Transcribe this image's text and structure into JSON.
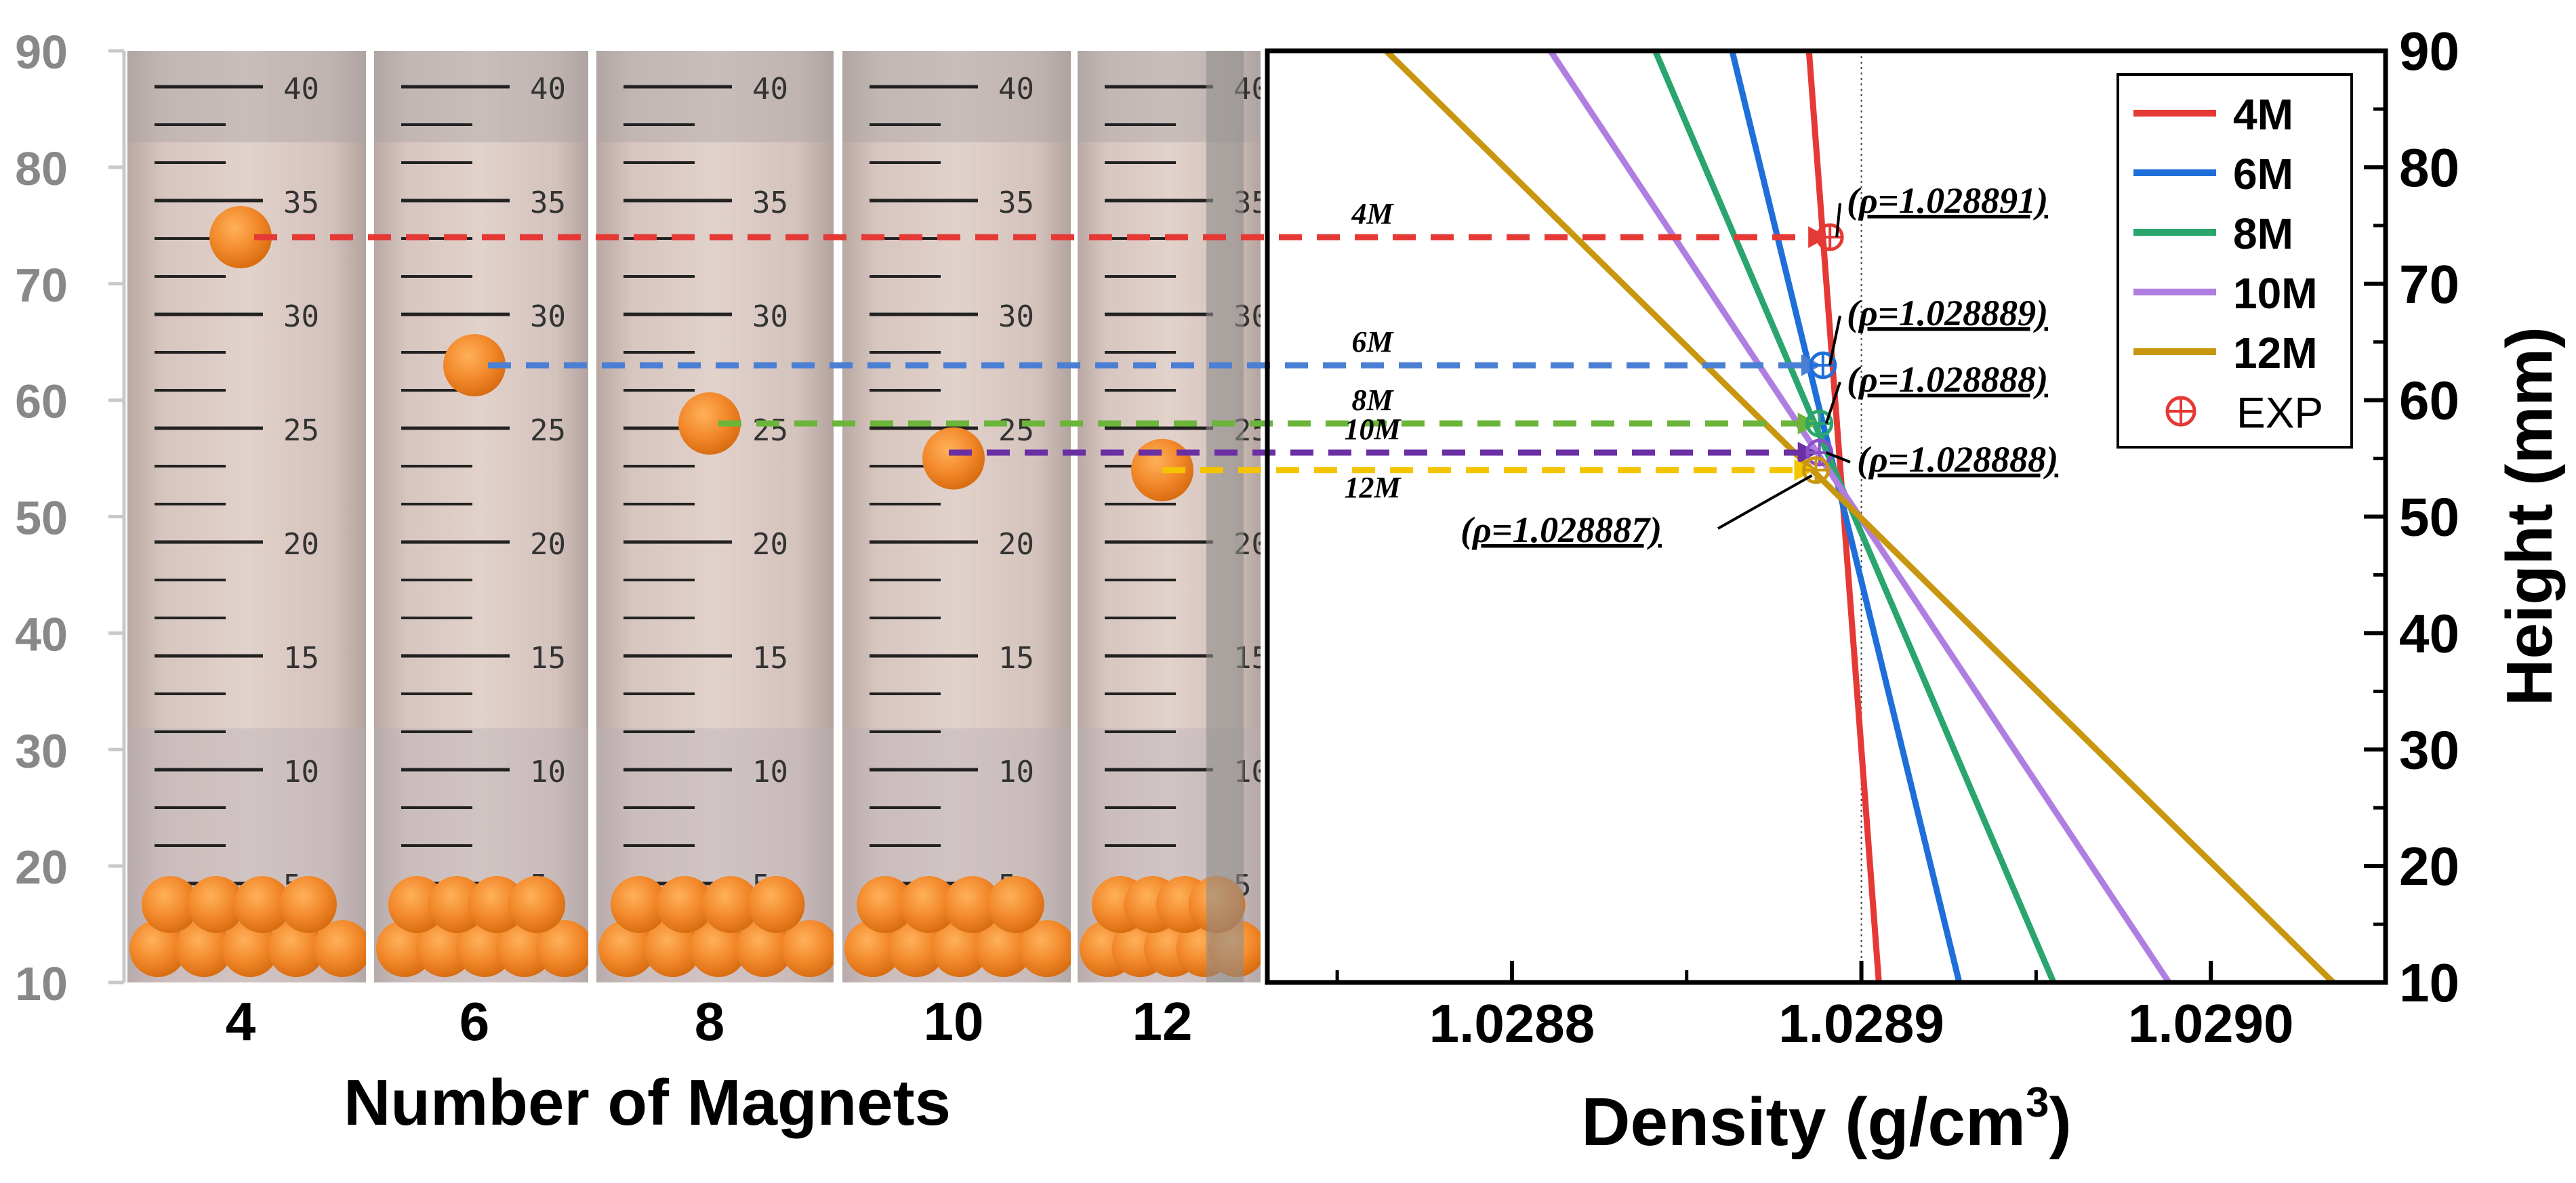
{
  "chart_data": [
    {
      "type": "photo-axis",
      "description_labels": {
        "xlabel": "Number of Magnets",
        "ylabel": ""
      },
      "yticks": [
        90,
        80,
        70,
        60,
        50,
        40,
        30,
        20,
        10
      ],
      "ylim": [
        10,
        90
      ],
      "tubes": [
        {
          "magnets": "4",
          "bead_height": 74
        },
        {
          "magnets": "6",
          "bead_height": 63
        },
        {
          "magnets": "8",
          "bead_height": 58
        },
        {
          "magnets": "10",
          "bead_height": 55
        },
        {
          "magnets": "12",
          "bead_height": 54
        }
      ],
      "tube_scale": [
        "40",
        "35",
        "30",
        "25",
        "20",
        "15",
        "10",
        "5"
      ]
    },
    {
      "type": "line",
      "xlabel": "Density (g/cm",
      "xlabel_sup": "3",
      "xlabel_close": ")",
      "ylabel": "Height (mm)",
      "xlim": [
        1.02873,
        1.02905
      ],
      "ylim": [
        10,
        90
      ],
      "xticks": [
        "1.0288",
        "1.0289",
        "1.0290"
      ],
      "xtick_values": [
        1.0288,
        1.0289,
        1.029
      ],
      "yticks": [
        90,
        80,
        70,
        60,
        50,
        40,
        30,
        20,
        10
      ],
      "reference_line_x": 1.0289,
      "series": [
        {
          "name": "4M",
          "color": "#e53935",
          "x0": 1.028885,
          "y0": 90,
          "x1": 1.028905,
          "y1": 10
        },
        {
          "name": "6M",
          "color": "#1e6fd9",
          "x0": 1.028863,
          "y0": 90,
          "x1": 1.028928,
          "y1": 10
        },
        {
          "name": "8M",
          "color": "#2aa56e",
          "x0": 1.028841,
          "y0": 90,
          "x1": 1.028955,
          "y1": 10
        },
        {
          "name": "10M",
          "color": "#b07ee0",
          "x0": 1.028811,
          "y0": 90,
          "x1": 1.028988,
          "y1": 10
        },
        {
          "name": "12M",
          "color": "#c9970f",
          "x0": 1.028764,
          "y0": 90,
          "x1": 1.029035,
          "y1": 10
        }
      ],
      "exp_points": [
        {
          "label": "4M",
          "y": 74,
          "x": 1.028891,
          "rho": "(ρ=1.028891)",
          "color": "#e53935",
          "arrow_color": "#e53935"
        },
        {
          "label": "6M",
          "y": 63,
          "x": 1.028889,
          "rho": "(ρ=1.028889)",
          "color": "#1e6fd9",
          "arrow_color": "#4a7fd4"
        },
        {
          "label": "8M",
          "y": 58,
          "x": 1.028888,
          "rho": "(ρ=1.028888)",
          "color": "#2aa56e",
          "arrow_color": "#6bb53a"
        },
        {
          "label": "10M",
          "y": 55.5,
          "x": 1.028888,
          "rho": "(ρ=1.028888)",
          "color": "#8a50c8",
          "arrow_color": "#6a2fa3"
        },
        {
          "label": "12M",
          "y": 54,
          "x": 1.028887,
          "rho": "(ρ=1.028887)",
          "color": "#c9970f",
          "arrow_color": "#f5c400"
        }
      ],
      "legend": {
        "placement": "top-right",
        "entries": [
          "4M",
          "6M",
          "8M",
          "10M",
          "12M"
        ],
        "exp_label": "EXP"
      }
    }
  ]
}
